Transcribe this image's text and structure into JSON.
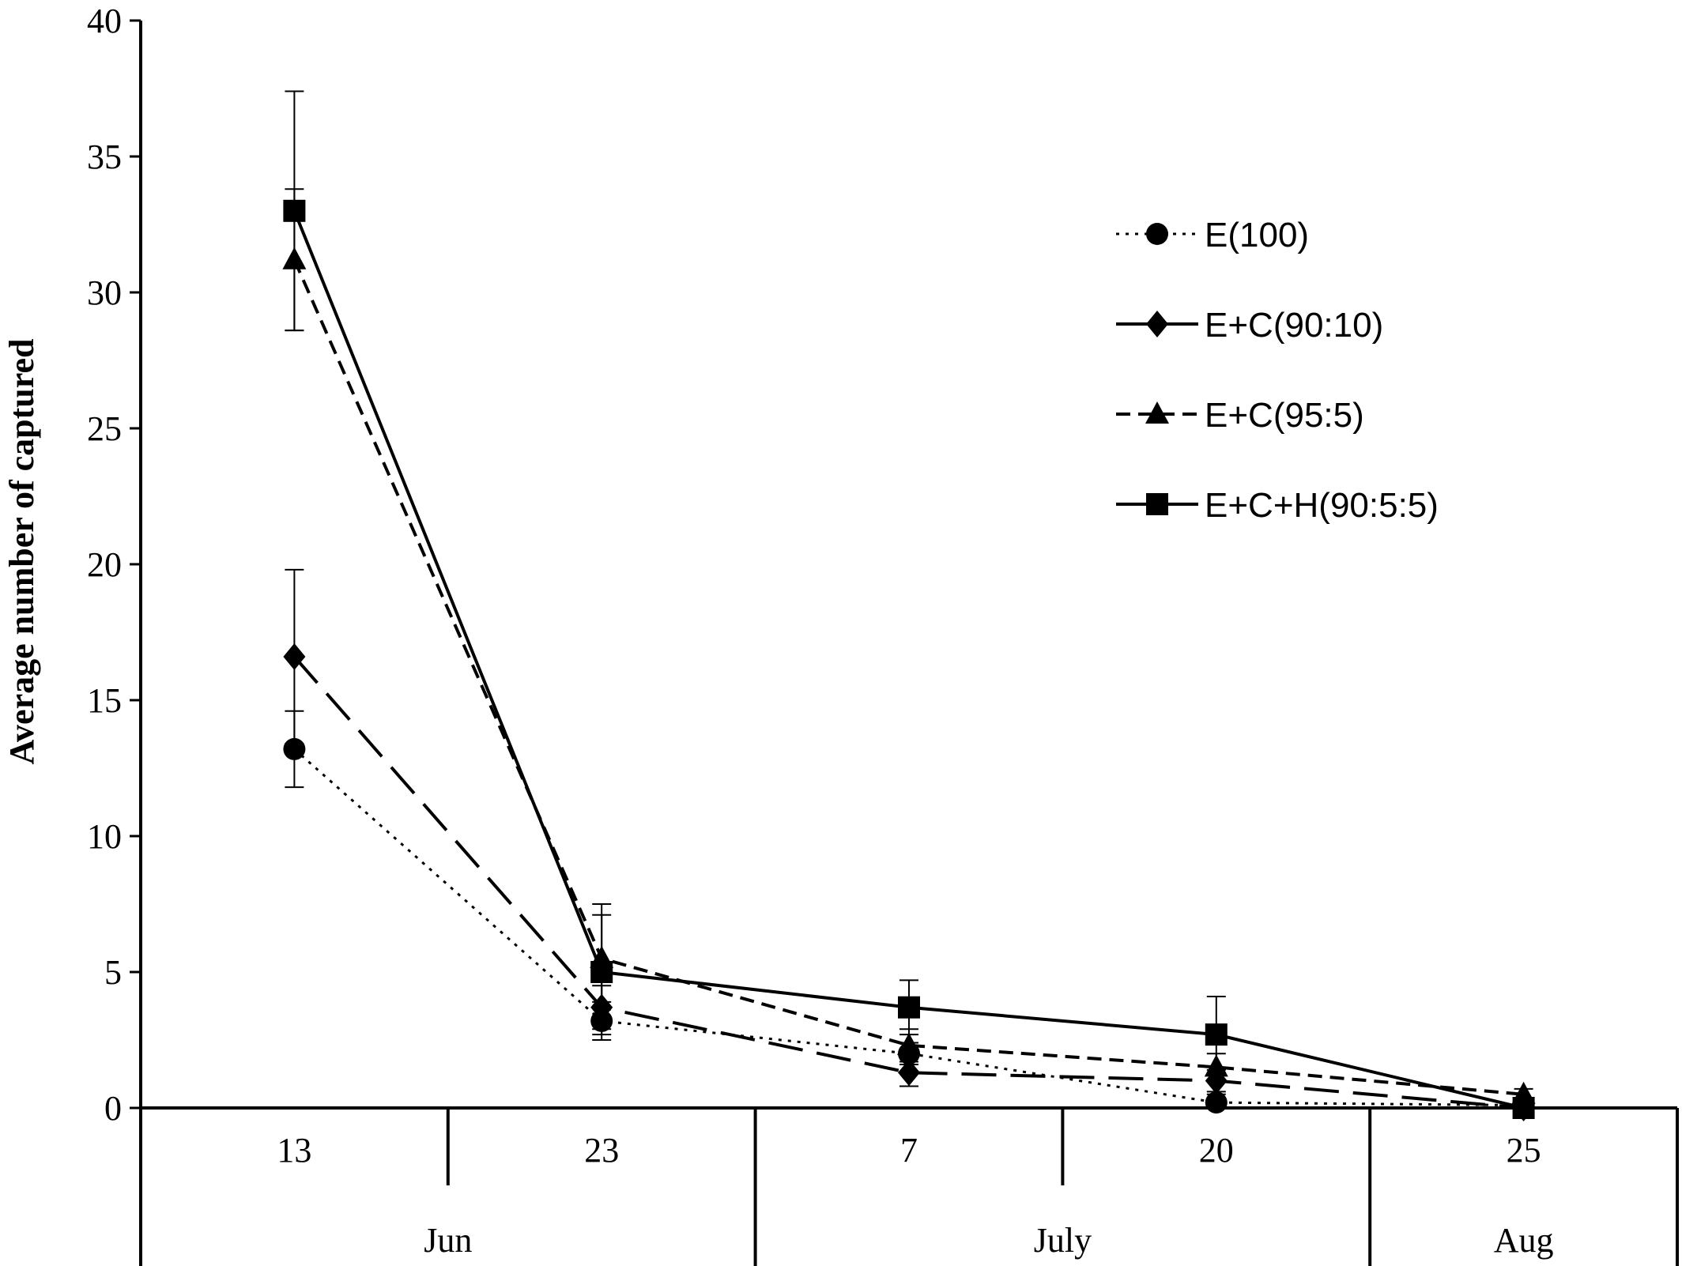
{
  "chart_data": {
    "type": "line",
    "ylabel": "Average number of captured",
    "ylim": [
      0,
      40
    ],
    "yticks": [
      0,
      5,
      10,
      15,
      20,
      25,
      30,
      35,
      40
    ],
    "categories": [
      "13",
      "23",
      "7",
      "20",
      "25"
    ],
    "groups": [
      {
        "label": "Jun",
        "span": [
          0,
          1
        ]
      },
      {
        "label": "July",
        "span": [
          2,
          3
        ]
      },
      {
        "label": "Aug",
        "span": [
          4,
          4
        ]
      }
    ],
    "legend_position": "top-right",
    "series": [
      {
        "name": "E(100)",
        "marker": "circle",
        "dash": "dotted",
        "values": [
          13.2,
          3.2,
          2.0,
          0.2,
          0.1
        ],
        "errors": [
          1.4,
          0.5,
          0.4,
          0.3,
          0.2
        ]
      },
      {
        "name": "E+C(90:10)",
        "marker": "diamond",
        "dash": "longdash",
        "values": [
          16.6,
          3.7,
          1.3,
          1.0,
          0.0
        ],
        "errors": [
          3.2,
          0.8,
          0.5,
          0.4,
          0.2
        ]
      },
      {
        "name": "E+C(95:5)",
        "marker": "triangle",
        "dash": "dashed",
        "values": [
          31.2,
          5.5,
          2.3,
          1.5,
          0.5
        ],
        "errors": [
          2.6,
          1.6,
          0.6,
          0.5,
          0.2
        ]
      },
      {
        "name": "E+C+H(90:5:5)",
        "marker": "square",
        "dash": "solid",
        "values": [
          33.0,
          5.0,
          3.7,
          2.7,
          0.0
        ],
        "errors": [
          4.4,
          2.5,
          1.0,
          1.4,
          0.1
        ]
      }
    ]
  }
}
